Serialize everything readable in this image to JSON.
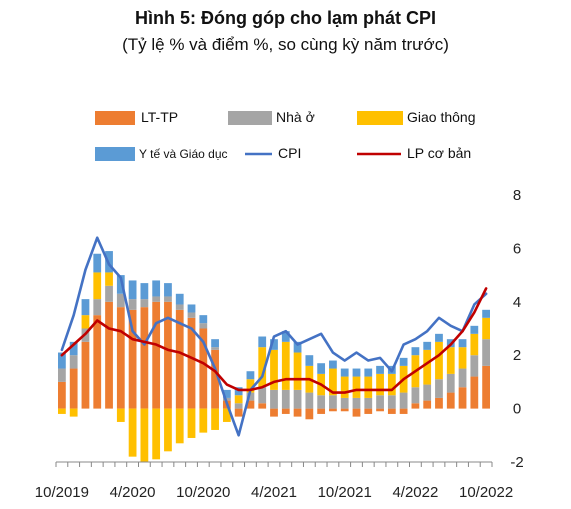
{
  "chart_data": {
    "type": "bar",
    "title": "Hình 5: Đóng góp cho lạm phát CPI",
    "subtitle": "(Tỷ lệ % và điểm %, so cùng kỳ năm trước)",
    "ylim": [
      -2,
      8
    ],
    "yticks": [
      "8",
      "6",
      "4",
      "2",
      "0",
      "-2"
    ],
    "xticks": [
      "10/2019",
      "4/2020",
      "10/2020",
      "4/2021",
      "10/2021",
      "4/2022",
      "10/2022"
    ],
    "categories": [
      "10/2019",
      "11/2019",
      "12/2019",
      "1/2020",
      "2/2020",
      "3/2020",
      "4/2020",
      "5/2020",
      "6/2020",
      "7/2020",
      "8/2020",
      "9/2020",
      "10/2020",
      "11/2020",
      "12/2020",
      "1/2021",
      "2/2021",
      "3/2021",
      "4/2021",
      "5/2021",
      "6/2021",
      "7/2021",
      "8/2021",
      "9/2021",
      "10/2021",
      "11/2021",
      "12/2021",
      "1/2022",
      "2/2022",
      "3/2022",
      "4/2022",
      "5/2022",
      "6/2022",
      "7/2022",
      "8/2022",
      "9/2022",
      "10/2022"
    ],
    "stacked": true,
    "series": [
      {
        "name": "LT-TP",
        "type": "bar",
        "color": "#ED7D31",
        "values": [
          1.0,
          1.5,
          2.5,
          3.5,
          4.0,
          3.8,
          3.7,
          3.8,
          4.0,
          4.0,
          3.7,
          3.4,
          3.0,
          2.2,
          0.3,
          -0.3,
          0.3,
          0.2,
          -0.3,
          -0.2,
          -0.3,
          -0.4,
          -0.2,
          -0.1,
          -0.1,
          -0.3,
          -0.2,
          -0.1,
          -0.2,
          -0.2,
          0.2,
          0.3,
          0.4,
          0.6,
          0.8,
          1.2,
          1.6
        ]
      },
      {
        "name": "Nhà ở",
        "type": "bar",
        "color": "#A5A5A5",
        "values": [
          0.5,
          0.5,
          0.5,
          0.6,
          0.6,
          0.5,
          0.4,
          0.3,
          0.2,
          0.2,
          0.2,
          0.2,
          0.2,
          0.1,
          0.1,
          0.2,
          0.3,
          0.6,
          0.7,
          0.7,
          0.7,
          0.6,
          0.5,
          0.5,
          0.4,
          0.4,
          0.4,
          0.5,
          0.5,
          0.6,
          0.6,
          0.6,
          0.7,
          0.7,
          0.7,
          0.8,
          1.0
        ]
      },
      {
        "name": "Giao thông",
        "type": "bar",
        "color": "#FFC000",
        "values": [
          -0.2,
          -0.3,
          0.5,
          1.0,
          0.5,
          -0.5,
          -1.8,
          -2.0,
          -1.9,
          -1.6,
          -1.3,
          -1.1,
          -0.9,
          -0.8,
          -0.5,
          0.3,
          0.5,
          1.5,
          1.5,
          1.8,
          1.4,
          1.0,
          0.8,
          1.0,
          0.8,
          0.8,
          0.8,
          0.8,
          0.8,
          1.0,
          1.2,
          1.3,
          1.4,
          1.0,
          0.8,
          0.8,
          0.8
        ]
      },
      {
        "name": "Y tế và Giáo dục",
        "type": "bar",
        "color": "#5B9BD5",
        "values": [
          0.6,
          0.5,
          0.6,
          0.7,
          0.8,
          0.7,
          0.7,
          0.6,
          0.6,
          0.5,
          0.4,
          0.3,
          0.3,
          0.3,
          0.3,
          0.3,
          0.3,
          0.4,
          0.4,
          0.4,
          0.4,
          0.4,
          0.4,
          0.3,
          0.3,
          0.3,
          0.3,
          0.3,
          0.3,
          0.3,
          0.3,
          0.3,
          0.3,
          0.3,
          0.3,
          0.3,
          0.3
        ]
      },
      {
        "name": "CPI",
        "type": "line",
        "color": "#4472C4",
        "values": [
          2.2,
          3.5,
          5.2,
          6.4,
          5.4,
          4.9,
          2.9,
          2.4,
          3.2,
          3.4,
          3.2,
          3.0,
          2.5,
          1.5,
          0.2,
          -1.0,
          0.7,
          1.2,
          2.7,
          2.9,
          2.4,
          2.6,
          2.8,
          2.1,
          1.8,
          2.1,
          1.8,
          1.9,
          1.4,
          2.4,
          2.6,
          2.9,
          3.4,
          3.1,
          2.9,
          3.9,
          4.3
        ]
      },
      {
        "name": "LP cơ bản",
        "type": "line",
        "color": "#C00000",
        "values": [
          2.0,
          2.4,
          2.8,
          3.3,
          3.0,
          2.9,
          2.6,
          2.5,
          2.4,
          2.2,
          2.1,
          1.9,
          1.7,
          1.4,
          0.9,
          0.7,
          0.7,
          0.8,
          1.0,
          1.1,
          1.1,
          1.1,
          0.9,
          0.6,
          0.6,
          0.7,
          0.7,
          0.7,
          0.7,
          1.1,
          1.4,
          1.7,
          2.0,
          2.4,
          2.9,
          3.6,
          4.5
        ]
      }
    ]
  }
}
